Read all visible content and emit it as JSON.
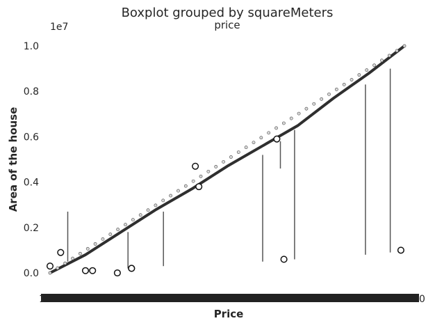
{
  "chart_data": {
    "type": "box",
    "suptitle": "Boxplot grouped by squareMeters",
    "title": "price",
    "xlabel": "Price",
    "ylabel": "Area of the house",
    "y_offset_label": "1e7",
    "ylim": [
      -0.1,
      1.0
    ],
    "y_ticks": [
      0.0,
      0.2,
      0.4,
      0.6,
      0.8,
      1.0
    ],
    "y_tick_labels": [
      "0.0",
      "0.2",
      "0.4",
      "0.6",
      "0.8",
      "1.0"
    ],
    "x_tick_labels_visible": [
      "1",
      "0"
    ],
    "grid": false,
    "note": "",
    "median_trend": {
      "x": [
        0.0,
        0.1,
        0.2,
        0.3,
        0.4,
        0.5,
        0.6,
        0.7,
        0.8,
        0.9,
        1.0
      ],
      "y": [
        0.0,
        0.08,
        0.18,
        0.28,
        0.37,
        0.47,
        0.56,
        0.65,
        0.77,
        0.88,
        1.0
      ]
    },
    "whiskers": [
      {
        "x": 0.05,
        "low": 0.05,
        "high": 0.27
      },
      {
        "x": 0.22,
        "low": 0.02,
        "high": 0.18
      },
      {
        "x": 0.32,
        "low": 0.03,
        "high": 0.27
      },
      {
        "x": 0.6,
        "low": 0.05,
        "high": 0.52
      },
      {
        "x": 0.65,
        "low": 0.46,
        "high": 0.58
      },
      {
        "x": 0.69,
        "low": 0.06,
        "high": 0.63
      },
      {
        "x": 0.89,
        "low": 0.08,
        "high": 0.83
      },
      {
        "x": 0.96,
        "low": 0.09,
        "high": 0.9
      }
    ],
    "outliers": [
      {
        "x": 0.0,
        "y": 0.03
      },
      {
        "x": 0.03,
        "y": 0.09
      },
      {
        "x": 0.1,
        "y": 0.01
      },
      {
        "x": 0.12,
        "y": 0.01
      },
      {
        "x": 0.19,
        "y": 0.0
      },
      {
        "x": 0.23,
        "y": 0.02
      },
      {
        "x": 0.23,
        "y": 0.02
      },
      {
        "x": 0.41,
        "y": 0.47
      },
      {
        "x": 0.42,
        "y": 0.38
      },
      {
        "x": 0.66,
        "y": 0.06
      },
      {
        "x": 0.64,
        "y": 0.59
      },
      {
        "x": 0.99,
        "y": 0.1
      }
    ]
  }
}
